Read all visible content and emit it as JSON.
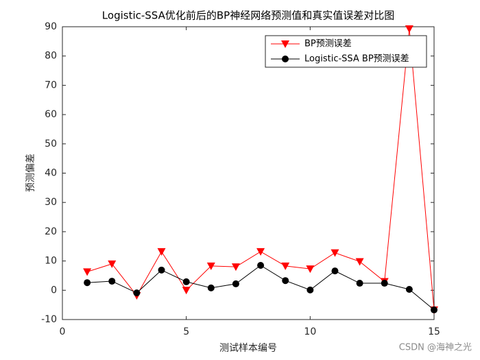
{
  "chart_data": {
    "type": "line",
    "title": "Logistic-SSA优化前后的BP神经网络预测值和真实值误差对比图",
    "x_label": "测试样本编号",
    "y_label": "预测偏差",
    "x": [
      1,
      2,
      3,
      4,
      5,
      6,
      7,
      8,
      9,
      10,
      11,
      12,
      13,
      14,
      15
    ],
    "series": [
      {
        "name": "BP预测误差",
        "color": "#ff0000",
        "marker": "triangle-down",
        "values": [
          6.3,
          9.0,
          -1.8,
          13.2,
          0.0,
          8.3,
          8.0,
          13.2,
          8.3,
          7.3,
          12.8,
          9.8,
          3.0,
          89.3,
          -6.7
        ]
      },
      {
        "name": "Logistic-SSA BP预测误差",
        "color": "#000000",
        "marker": "circle",
        "values": [
          2.6,
          3.1,
          -0.9,
          6.9,
          2.9,
          0.8,
          2.2,
          8.5,
          3.3,
          0.1,
          6.6,
          2.4,
          2.4,
          0.3,
          -6.7
        ]
      }
    ],
    "xlim": [
      0,
      15
    ],
    "xticks": [
      0,
      5,
      10,
      15
    ],
    "ylim": [
      -10,
      90
    ],
    "yticks": [
      -10,
      0,
      10,
      20,
      30,
      40,
      50,
      60,
      70,
      80,
      90
    ],
    "legend": "northeast",
    "watermark": "CSDN @海神之光"
  }
}
